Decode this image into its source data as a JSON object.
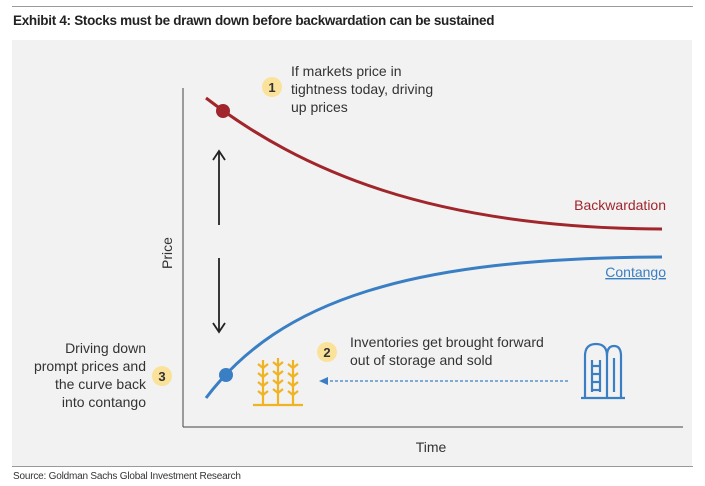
{
  "title": "Exhibit 4: Stocks must be drawn down before backwardation can be sustained",
  "source": "Source: Goldman Sachs Global Investment Research",
  "axes": {
    "y_label": "Price",
    "x_label": "Time"
  },
  "curves": {
    "backwardation": {
      "label": "Backwardation",
      "color": "#a0262b"
    },
    "contango": {
      "label": "Contango",
      "color": "#3a7fc4"
    }
  },
  "annotations": [
    {
      "number": "1",
      "lines": [
        "If markets price in",
        "tightness today, driving",
        "up prices"
      ]
    },
    {
      "number": "2",
      "lines": [
        "Inventories get brought forward",
        "out of storage and sold"
      ]
    },
    {
      "number": "3",
      "lines": [
        "Driving down",
        "prompt prices and",
        "the curve back",
        "into contango"
      ]
    }
  ],
  "colors": {
    "badge": "#fbe29a",
    "wheat": "#f0b323",
    "silo": "#3a7fc4",
    "arrow": "#222222",
    "dashed_arrow": "#3a7fc4"
  },
  "icons": [
    "wheat-icon",
    "silo-icon"
  ]
}
